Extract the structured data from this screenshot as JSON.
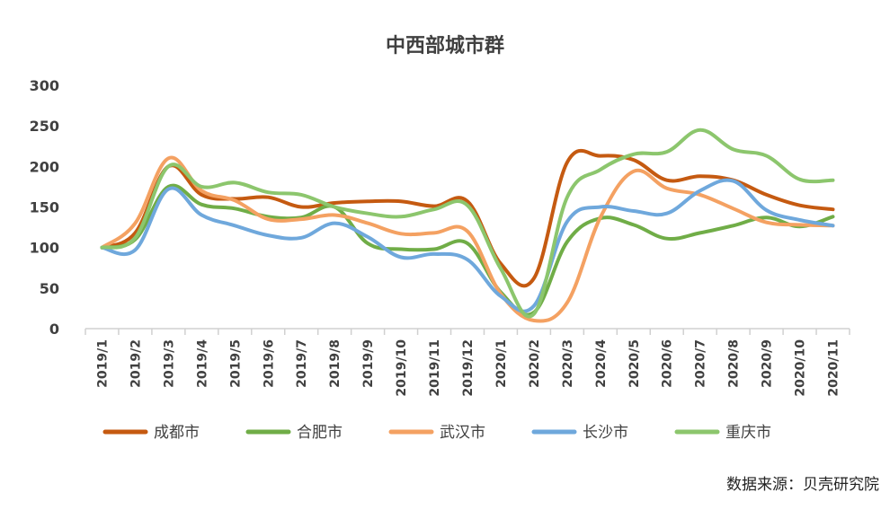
{
  "chart_data": {
    "type": "line",
    "title": "中西部城市群",
    "xlabel": "",
    "ylabel": "",
    "ylim": [
      0,
      300
    ],
    "yticks": [
      0,
      50,
      100,
      150,
      200,
      250,
      300
    ],
    "grid": false,
    "legend_position": "bottom",
    "categories": [
      "2019/1",
      "2019/2",
      "2019/3",
      "2019/4",
      "2019/5",
      "2019/6",
      "2019/7",
      "2019/8",
      "2019/9",
      "2019/10",
      "2019/11",
      "2019/12",
      "2020/1",
      "2020/2",
      "2020/3",
      "2020/4",
      "2020/5",
      "2020/6",
      "2020/7",
      "2020/8",
      "2020/9",
      "2020/10",
      "2020/11"
    ],
    "series": [
      {
        "name": "成都市",
        "color": "#C55A11",
        "values": [
          100,
          118,
          200,
          165,
          160,
          162,
          150,
          155,
          157,
          157,
          151,
          157,
          80,
          62,
          205,
          213,
          208,
          183,
          188,
          183,
          165,
          152,
          147
        ]
      },
      {
        "name": "合肥市",
        "color": "#70AD47",
        "values": [
          100,
          110,
          175,
          153,
          148,
          138,
          137,
          150,
          105,
          98,
          98,
          105,
          45,
          20,
          107,
          136,
          128,
          111,
          118,
          127,
          137,
          126,
          138
        ]
      },
      {
        "name": "武汉市",
        "color": "#F4A162",
        "values": [
          100,
          130,
          210,
          170,
          158,
          135,
          135,
          140,
          130,
          117,
          118,
          120,
          43,
          10,
          32,
          137,
          194,
          173,
          165,
          148,
          131,
          128,
          127
        ]
      },
      {
        "name": "长沙市",
        "color": "#6FA8DC",
        "values": [
          100,
          97,
          172,
          140,
          127,
          115,
          112,
          130,
          113,
          88,
          92,
          85,
          40,
          28,
          132,
          150,
          145,
          142,
          170,
          182,
          146,
          134,
          127
        ]
      },
      {
        "name": "重庆市",
        "color": "#8CC66D",
        "values": [
          100,
          112,
          200,
          175,
          180,
          168,
          165,
          150,
          142,
          138,
          147,
          152,
          74,
          18,
          162,
          196,
          215,
          218,
          245,
          221,
          213,
          184,
          183
        ]
      }
    ]
  },
  "source": "数据来源：贝壳研究院"
}
